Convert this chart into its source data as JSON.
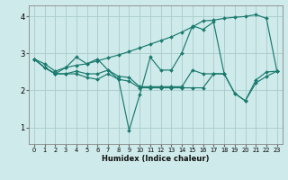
{
  "xlabel": "Humidex (Indice chaleur)",
  "background_color": "#ceeaea",
  "line_color": "#1a7a6e",
  "grid_color": "#aacccc",
  "xlim": [
    -0.5,
    23.5
  ],
  "ylim": [
    0.55,
    4.3
  ],
  "yticks": [
    1,
    2,
    3,
    4
  ],
  "xticks": [
    0,
    1,
    2,
    3,
    4,
    5,
    6,
    7,
    8,
    9,
    10,
    11,
    12,
    13,
    14,
    15,
    16,
    17,
    18,
    19,
    20,
    21,
    22,
    23
  ],
  "series": [
    {
      "x": [
        0,
        1,
        2,
        3,
        4,
        5,
        6,
        7,
        8,
        9,
        10,
        11,
        12,
        13,
        14,
        15,
        16,
        17,
        18
      ],
      "y": [
        2.85,
        2.62,
        2.45,
        2.62,
        2.9,
        2.72,
        2.85,
        2.55,
        2.3,
        0.92,
        1.88,
        2.9,
        2.55,
        2.55,
        3.02,
        3.75,
        3.65,
        3.85,
        2.45
      ]
    },
    {
      "x": [
        0,
        1,
        2,
        3,
        4,
        5,
        6,
        7,
        8,
        9,
        10,
        11,
        12,
        13,
        14,
        15,
        16,
        17,
        18,
        19,
        20,
        21,
        22,
        23
      ],
      "y": [
        2.85,
        2.72,
        2.52,
        2.62,
        2.68,
        2.72,
        2.8,
        2.88,
        2.96,
        3.05,
        3.15,
        3.25,
        3.35,
        3.45,
        3.58,
        3.72,
        3.88,
        3.9,
        3.95,
        3.98,
        4.0,
        4.05,
        3.95,
        2.52
      ]
    },
    {
      "x": [
        0,
        1,
        2,
        3,
        4,
        5,
        6,
        7,
        8,
        9,
        10,
        11,
        12,
        13,
        14,
        15,
        16,
        17,
        18,
        19,
        20,
        21,
        22,
        23
      ],
      "y": [
        2.85,
        2.62,
        2.45,
        2.45,
        2.52,
        2.45,
        2.45,
        2.55,
        2.38,
        2.35,
        2.1,
        2.1,
        2.1,
        2.1,
        2.1,
        2.55,
        2.45,
        2.45,
        2.45,
        1.92,
        1.72,
        2.28,
        2.5,
        2.52
      ]
    },
    {
      "x": [
        0,
        1,
        2,
        3,
        4,
        5,
        6,
        7,
        8,
        9,
        10,
        11,
        12,
        13,
        14,
        15,
        16,
        17,
        18,
        19,
        20,
        21,
        22,
        23
      ],
      "y": [
        2.85,
        2.62,
        2.45,
        2.45,
        2.45,
        2.35,
        2.3,
        2.45,
        2.3,
        2.25,
        2.07,
        2.07,
        2.07,
        2.07,
        2.07,
        2.07,
        2.07,
        2.45,
        2.45,
        1.92,
        1.72,
        2.2,
        2.38,
        2.52
      ]
    }
  ]
}
